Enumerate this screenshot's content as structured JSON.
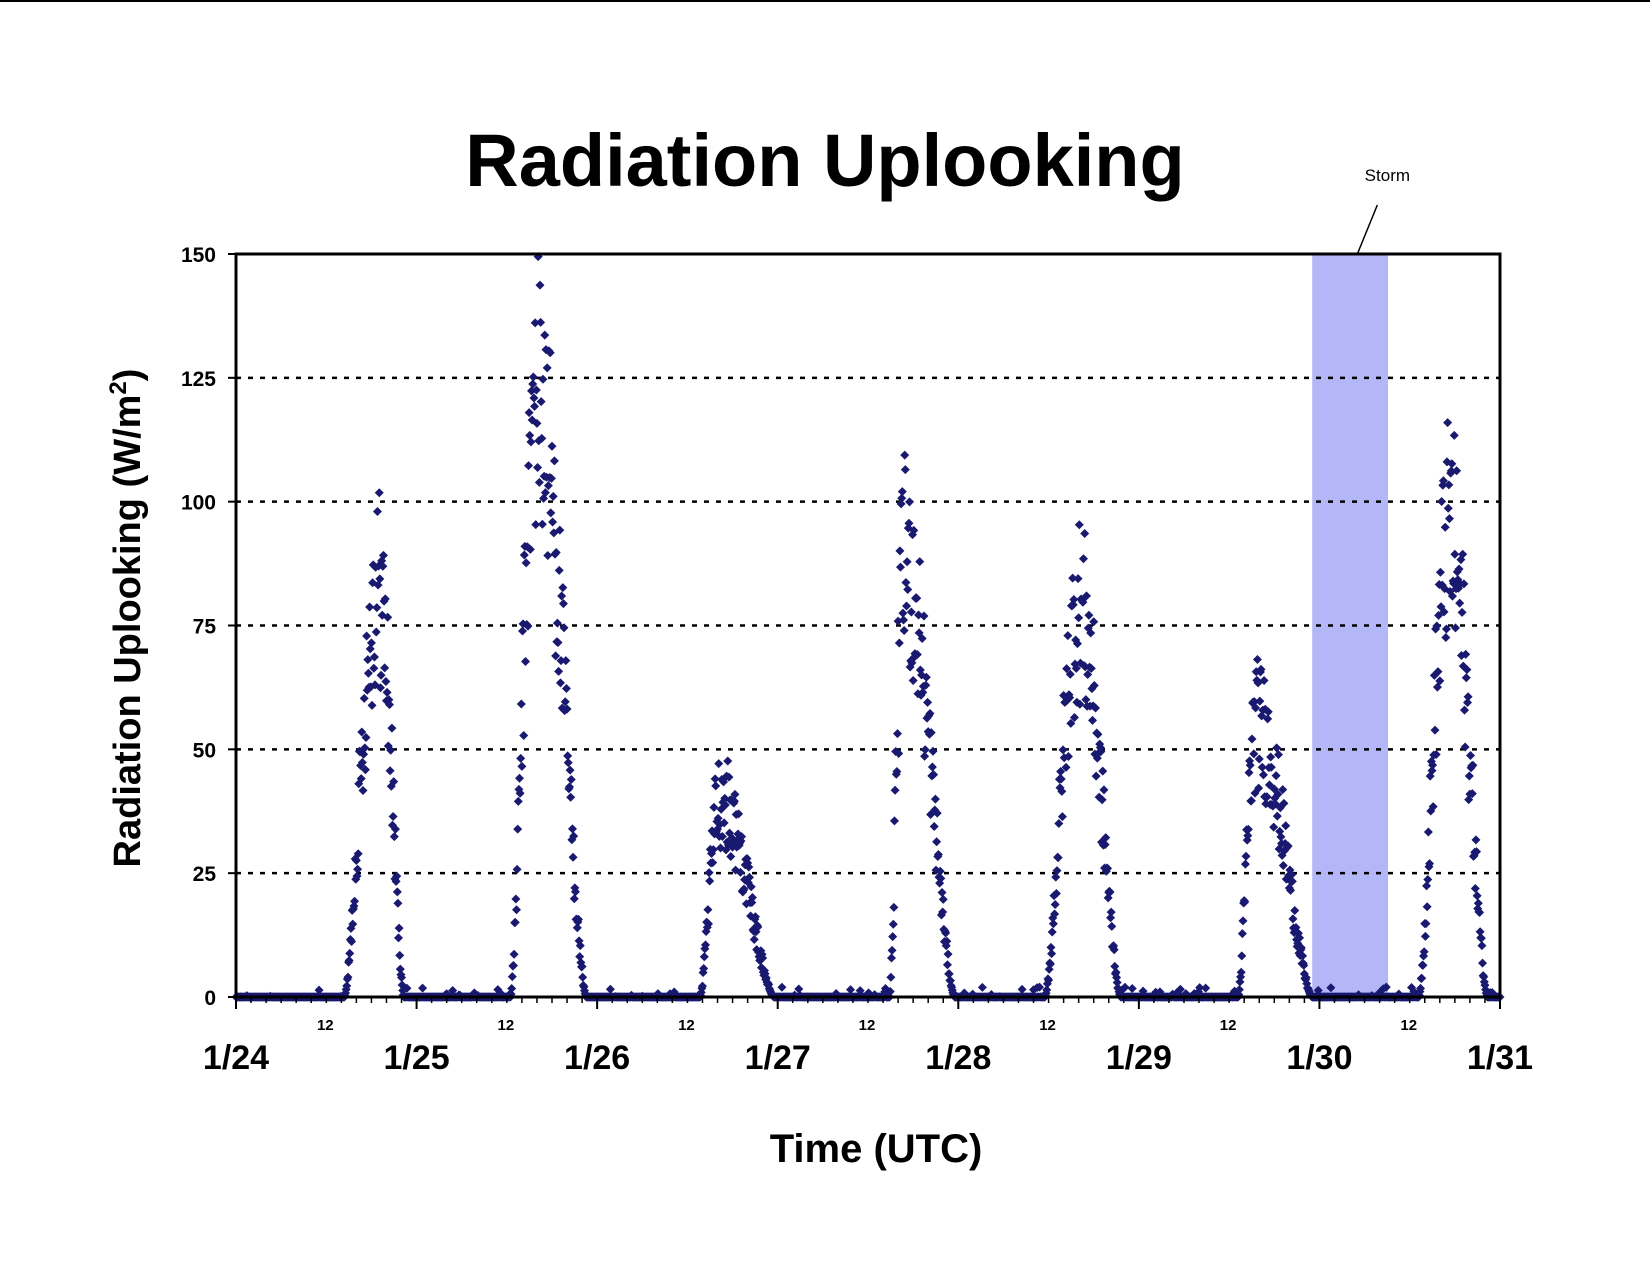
{
  "colors": {
    "series": "#191970",
    "storm_band": "#b3b7f7",
    "grid": "#000000",
    "background": "#ffffff"
  },
  "chart_data": {
    "type": "scatter",
    "title": "Radiation Uplooking",
    "xlabel": "Time (UTC)",
    "ylabel": {
      "text": "Radiation Uplooking (W/m",
      "sup": "2",
      "close": ")"
    },
    "ylim": [
      0,
      150
    ],
    "yticks": [
      "0",
      "25",
      "50",
      "75",
      "100",
      "125",
      "150"
    ],
    "xlim_days": [
      0,
      7
    ],
    "xticks_major": [
      "1/24",
      "1/25",
      "1/26",
      "1/27",
      "1/28",
      "1/29",
      "1/30",
      "1/31"
    ],
    "xticks_minor_label": "12",
    "grid": {
      "y": true,
      "x": false,
      "style": "dotted"
    },
    "legend": "none",
    "annotation": {
      "text": "Storm",
      "x_days": 6.21
    },
    "storm_band": {
      "start_day": 5.96,
      "end_day": 6.38
    },
    "series": [
      {
        "marker": "diamond",
        "peaks": [
          {
            "center_day": 0.79,
            "rise": 0.6,
            "fall": 0.93,
            "value": 83
          },
          {
            "center_day": 1.67,
            "rise": 1.52,
            "fall": 1.94,
            "value": 122
          },
          {
            "center_day": 2.68,
            "rise": 2.57,
            "fall": 2.98,
            "value": 40
          },
          {
            "center_day": 3.7,
            "rise": 3.62,
            "fall": 3.98,
            "value": 88
          },
          {
            "center_day": 4.67,
            "rise": 4.48,
            "fall": 4.9,
            "value": 78
          },
          {
            "center_day": 5.65,
            "rise": 5.55,
            "fall": 5.96,
            "value": 55
          },
          {
            "center_day": 6.72,
            "rise": 6.55,
            "fall": 6.93,
            "value": 94
          }
        ]
      }
    ]
  }
}
